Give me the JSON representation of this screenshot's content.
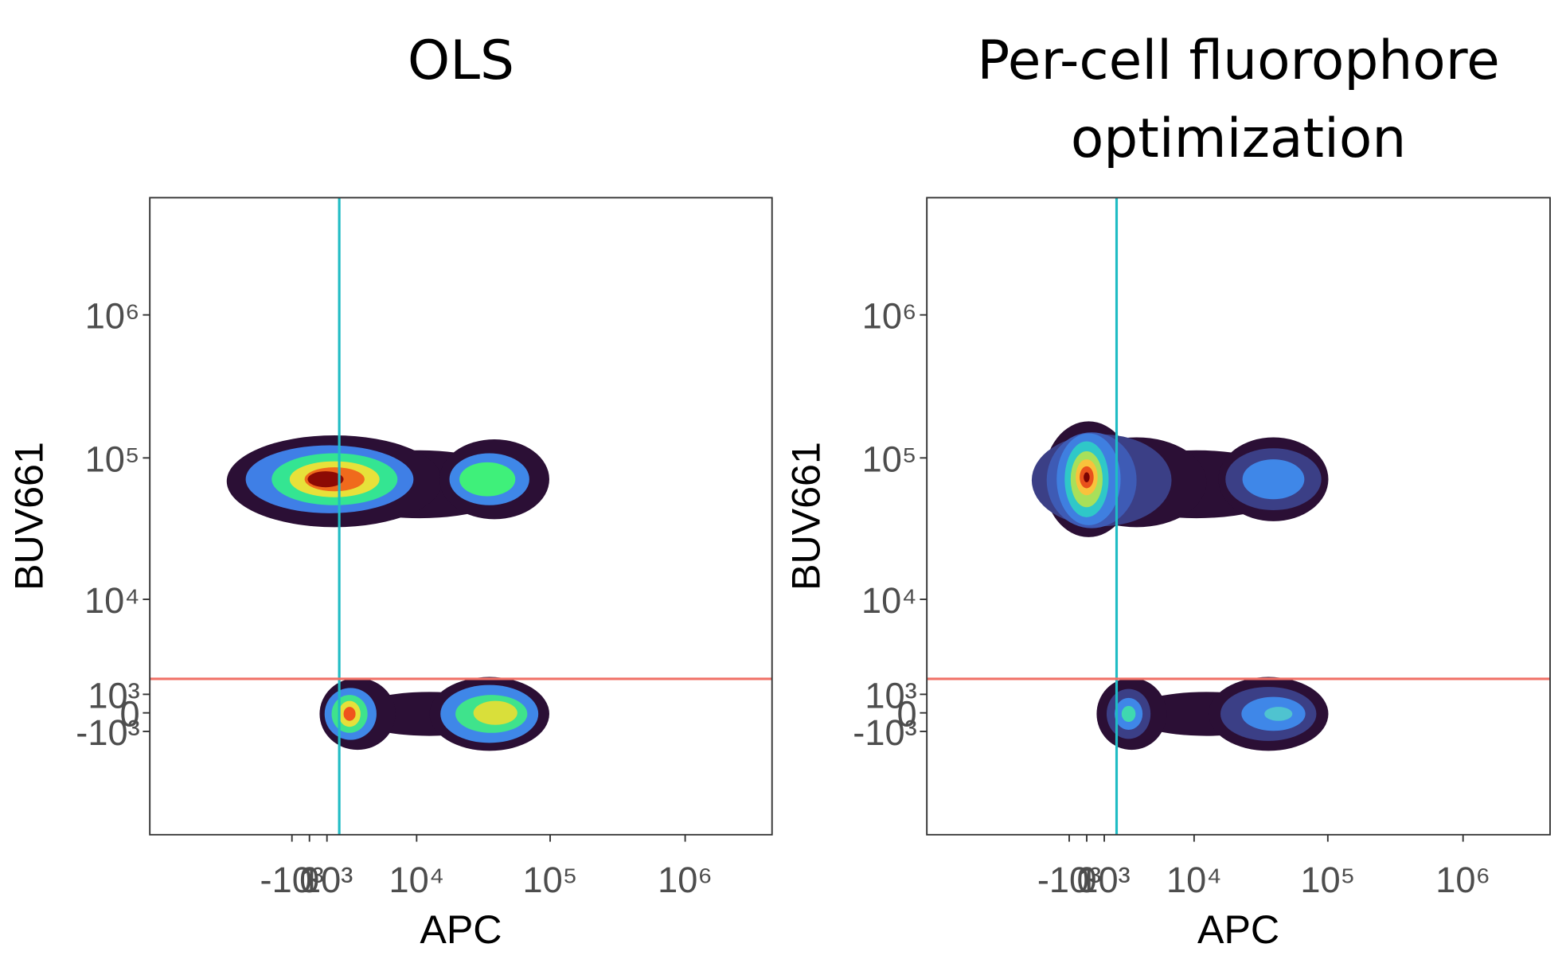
{
  "chart_data": [
    {
      "type": "density",
      "title": "OLS",
      "x_label": "APC",
      "y_label": "BUV661",
      "scale": "asinh",
      "xlim": [
        -25000,
        4400000
      ],
      "ylim": [
        -11500,
        6600000
      ],
      "xticks": [
        {
          "value": -1000,
          "label": "-10³"
        },
        0,
        {
          "value": 1000,
          "label": "10³"
        },
        {
          "value": 10000,
          "label": "10⁴"
        },
        {
          "value": 100000,
          "label": "10⁵"
        },
        {
          "value": 1000000,
          "label": "10⁶"
        }
      ],
      "yticks": [
        {
          "value": -1000,
          "label": "-10³"
        },
        0,
        {
          "value": 1000,
          "label": "10³"
        },
        {
          "value": 10000,
          "label": "10⁴"
        },
        {
          "value": 100000,
          "label": "10⁵"
        },
        {
          "value": 1000000,
          "label": "10⁶"
        }
      ],
      "vline": 1750,
      "vline_color": "#1fbcc4",
      "hline": 1900,
      "hline_color": "#f07167"
    },
    {
      "type": "density",
      "title": "Per-cell fluorophore optimization",
      "x_label": "APC",
      "y_label": "BUV661",
      "scale": "asinh",
      "xlim": [
        -25000,
        4400000
      ],
      "ylim": [
        -11500,
        6600000
      ],
      "xticks": [
        {
          "value": -1000,
          "label": "-10³"
        },
        0,
        {
          "value": 1000,
          "label": "10³"
        },
        {
          "value": 10000,
          "label": "10⁴"
        },
        {
          "value": 100000,
          "label": "10⁵"
        },
        {
          "value": 1000000,
          "label": "10⁶"
        }
      ],
      "yticks": [
        {
          "value": -1000,
          "label": "-10³"
        },
        0,
        {
          "value": 1000,
          "label": "10³"
        },
        {
          "value": 10000,
          "label": "10⁴"
        },
        {
          "value": 100000,
          "label": "10⁵"
        },
        {
          "value": 1000000,
          "label": "10⁶"
        }
      ],
      "vline": 1750,
      "vline_color": "#1fbcc4",
      "hline": 1900,
      "hline_color": "#f07167"
    }
  ]
}
